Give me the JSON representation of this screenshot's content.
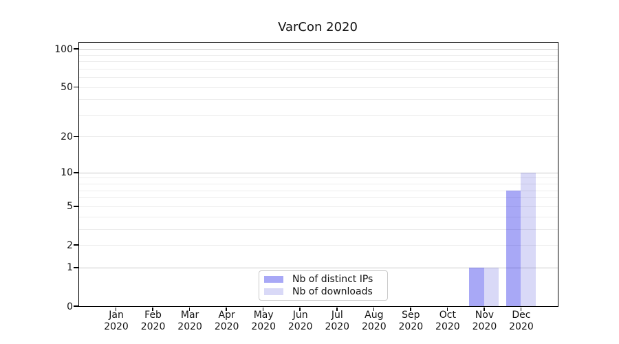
{
  "chart_data": {
    "type": "bar",
    "title": "VarCon 2020",
    "months": [
      "Jan",
      "Feb",
      "Mar",
      "Apr",
      "May",
      "Jun",
      "Jul",
      "Aug",
      "Sep",
      "Oct",
      "Nov",
      "Dec"
    ],
    "year_label": "2020",
    "series": [
      {
        "name": "Nb of distinct IPs",
        "color": "rgba(0,0,228,0.34)",
        "values": [
          0,
          0,
          0,
          0,
          0,
          0,
          0,
          0,
          0,
          0,
          1,
          7
        ]
      },
      {
        "name": "Nb of downloads",
        "color": "rgba(0,0,201,0.15)",
        "values": [
          0,
          0,
          0,
          0,
          0,
          0,
          0,
          0,
          0,
          0,
          1,
          10
        ]
      }
    ],
    "y_axis": {
      "scale": "log1p",
      "tick_labels": [
        "0",
        "1",
        "2",
        "5",
        "10",
        "20",
        "50",
        "100"
      ],
      "tick_values": [
        0,
        1,
        2,
        5,
        10,
        20,
        50,
        100
      ],
      "major_gridlines": [
        1,
        10,
        100
      ],
      "minor_gridlines": [
        2,
        3,
        4,
        5,
        6,
        7,
        8,
        9,
        20,
        30,
        40,
        50,
        60,
        70,
        80,
        90
      ],
      "ylim": [
        0,
        113
      ]
    },
    "grid": "horizontal",
    "legend": {
      "position": "lower-center"
    },
    "colors": {
      "text": "#111111",
      "spine": "#000000",
      "grid_major": "#c8c8c8",
      "grid_minor": "#ececec",
      "background": "#ffffff"
    }
  }
}
